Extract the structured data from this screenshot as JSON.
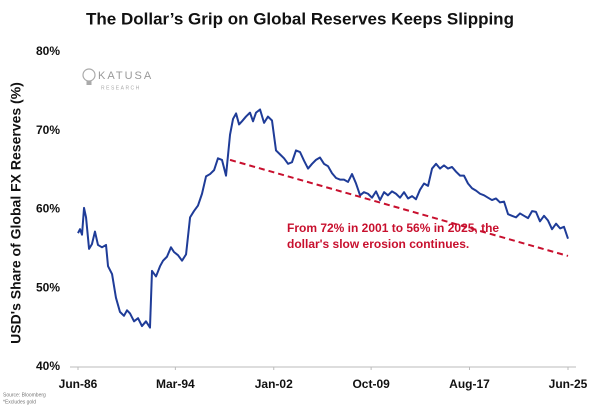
{
  "chart_data": {
    "type": "line",
    "title": "The Dollar’s Grip on Global Reserves Keeps Slipping",
    "ylabel": "USD's Share of Global FX Reserves (%)",
    "xlim": [
      1986.42,
      2025.42
    ],
    "xticks": [
      {
        "value": 1986.42,
        "label": "Jun-86"
      },
      {
        "value": 1994.17,
        "label": "Mar-94"
      },
      {
        "value": 2002.0,
        "label": "Jan-02"
      },
      {
        "value": 2009.75,
        "label": "Oct-09"
      },
      {
        "value": 2017.58,
        "label": "Aug-17"
      },
      {
        "value": 2025.42,
        "label": "Jun-25"
      }
    ],
    "ylim": [
      40,
      80
    ],
    "yticks": [
      {
        "value": 40,
        "label": "40%"
      },
      {
        "value": 50,
        "label": "50%"
      },
      {
        "value": 60,
        "label": "60%"
      },
      {
        "value": 70,
        "label": "70%"
      },
      {
        "value": 80,
        "label": "80%"
      }
    ],
    "grid": false,
    "series": [
      {
        "color": "#1f3c98",
        "x": [
          1986.42,
          1986.58,
          1986.74,
          1986.9,
          1987.06,
          1987.3,
          1987.53,
          1987.77,
          1988.01,
          1988.33,
          1988.65,
          1988.81,
          1989.13,
          1989.44,
          1989.76,
          1990.08,
          1990.32,
          1990.56,
          1990.88,
          1991.2,
          1991.51,
          1991.83,
          1992.15,
          1992.31,
          1992.63,
          1992.95,
          1993.19,
          1993.5,
          1993.82,
          1994.06,
          1994.38,
          1994.7,
          1995.02,
          1995.34,
          1995.65,
          1995.97,
          1996.29,
          1996.61,
          1996.93,
          1997.25,
          1997.56,
          1997.88,
          1998.2,
          1998.52,
          1998.76,
          1999.0,
          1999.24,
          1999.47,
          1999.79,
          2000.11,
          2000.35,
          2000.59,
          2000.91,
          2001.23,
          2001.54,
          2001.86,
          2002.18,
          2002.5,
          2002.82,
          2003.14,
          2003.45,
          2003.77,
          2004.09,
          2004.41,
          2004.73,
          2005.05,
          2005.36,
          2005.68,
          2006.0,
          2006.32,
          2006.64,
          2006.96,
          2007.27,
          2007.59,
          2007.91,
          2008.23,
          2008.55,
          2008.87,
          2009.18,
          2009.5,
          2009.82,
          2010.14,
          2010.46,
          2010.78,
          2011.09,
          2011.41,
          2011.73,
          2012.05,
          2012.37,
          2012.69,
          2013.01,
          2013.32,
          2013.64,
          2013.96,
          2014.28,
          2014.6,
          2014.92,
          2015.23,
          2015.55,
          2015.87,
          2016.19,
          2016.51,
          2016.83,
          2017.14,
          2017.46,
          2017.78,
          2018.1,
          2018.42,
          2018.74,
          2019.05,
          2019.37,
          2019.69,
          2020.01,
          2020.33,
          2020.65,
          2020.96,
          2021.28,
          2021.6,
          2021.92,
          2022.24,
          2022.56,
          2022.87,
          2023.19,
          2023.51,
          2023.83,
          2024.15,
          2024.47,
          2024.79,
          2025.1,
          2025.42
        ],
        "values": [
          57.0,
          57.5,
          56.8,
          60.2,
          59.0,
          55.0,
          55.6,
          57.2,
          55.5,
          55.2,
          55.5,
          52.8,
          51.8,
          48.8,
          47.0,
          46.5,
          47.2,
          46.8,
          45.8,
          46.2,
          45.2,
          45.8,
          45.0,
          52.2,
          51.5,
          52.8,
          53.5,
          54.0,
          55.2,
          54.6,
          54.2,
          53.5,
          54.3,
          59.0,
          59.8,
          60.5,
          62.0,
          64.2,
          64.5,
          65.0,
          66.5,
          66.3,
          64.3,
          69.5,
          71.5,
          72.2,
          70.8,
          71.2,
          71.8,
          72.3,
          71.2,
          72.3,
          72.7,
          71.0,
          71.8,
          71.3,
          67.5,
          67.0,
          66.5,
          65.8,
          66.0,
          67.5,
          67.3,
          66.2,
          65.2,
          65.8,
          66.3,
          66.6,
          65.8,
          65.5,
          64.6,
          64.0,
          63.8,
          63.8,
          63.5,
          64.5,
          63.3,
          61.8,
          62.2,
          62.0,
          61.5,
          62.3,
          61.2,
          62.2,
          61.8,
          62.3,
          62.0,
          61.5,
          62.2,
          61.4,
          61.7,
          61.3,
          62.5,
          63.3,
          63.0,
          65.2,
          65.8,
          65.2,
          65.6,
          65.2,
          65.4,
          64.8,
          64.3,
          64.3,
          63.3,
          62.7,
          62.4,
          62.0,
          61.8,
          61.5,
          61.2,
          61.4,
          60.9,
          61.0,
          59.4,
          59.2,
          59.0,
          59.5,
          59.2,
          58.9,
          59.8,
          59.7,
          58.5,
          59.2,
          58.6,
          57.5,
          58.2,
          57.6,
          57.8,
          56.3
        ]
      }
    ],
    "trend": {
      "color": "#c8102e",
      "x": [
        1998.52,
        2025.42
      ],
      "values": [
        66.3,
        54.1
      ]
    },
    "annotation": [
      "From 72% in 2001 to 56% in 2025, the",
      "dollar's slow erosion continues."
    ],
    "logo": {
      "name": "KATUSA",
      "tagline": "RESEARCH"
    },
    "notes": [
      "Source: Bloomberg",
      "*Excludes gold"
    ]
  }
}
